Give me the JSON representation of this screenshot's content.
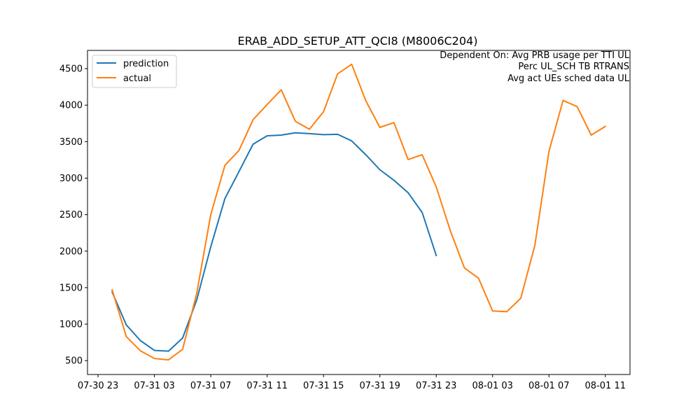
{
  "chart_data": {
    "type": "line",
    "title": "ERAB_ADD_SETUP_ATT_QCI8 (M8006C204)",
    "xlabel": "",
    "ylabel": "",
    "x_ticks": [
      "07-30 23",
      "07-31 03",
      "07-31 07",
      "07-31 11",
      "07-31 15",
      "07-31 19",
      "07-31 23",
      "08-01 03",
      "08-01 07",
      "08-01 11"
    ],
    "y_ticks": [
      500,
      1000,
      1500,
      2000,
      2500,
      3000,
      3500,
      4000,
      4500
    ],
    "xlim": [
      "2023-07-30 22:15",
      "2023-08-01 12:45"
    ],
    "ylim": [
      310,
      4750
    ],
    "grid": false,
    "legend_position": "upper-left",
    "annotation_lines": [
      "Dependent On: Avg PRB usage per TTI UL",
      "Perc UL_SCH TB RTRANS",
      "Avg act UEs sched data UL"
    ],
    "series": [
      {
        "name": "prediction",
        "color": "#1f77b4",
        "x": [
          "2023-07-31 00:00",
          "2023-07-31 01:00",
          "2023-07-31 02:00",
          "2023-07-31 03:00",
          "2023-07-31 04:00",
          "2023-07-31 05:00",
          "2023-07-31 06:00",
          "2023-07-31 07:00",
          "2023-07-31 08:00",
          "2023-07-31 09:00",
          "2023-07-31 10:00",
          "2023-07-31 11:00",
          "2023-07-31 12:00",
          "2023-07-31 13:00",
          "2023-07-31 14:00",
          "2023-07-31 15:00",
          "2023-07-31 16:00",
          "2023-07-31 17:00",
          "2023-07-31 18:00",
          "2023-07-31 19:00",
          "2023-07-31 20:00",
          "2023-07-31 21:00",
          "2023-07-31 22:00",
          "2023-07-31 23:00"
        ],
        "values": [
          1440,
          990,
          775,
          640,
          630,
          810,
          1330,
          2060,
          2720,
          3090,
          3465,
          3580,
          3590,
          3620,
          3610,
          3595,
          3600,
          3510,
          3320,
          3115,
          2970,
          2800,
          2530,
          1940
        ]
      },
      {
        "name": "actual",
        "color": "#ff7f0e",
        "x": [
          "2023-07-31 00:00",
          "2023-07-31 01:00",
          "2023-07-31 02:00",
          "2023-07-31 03:00",
          "2023-07-31 04:00",
          "2023-07-31 05:00",
          "2023-07-31 06:00",
          "2023-07-31 07:00",
          "2023-07-31 08:00",
          "2023-07-31 09:00",
          "2023-07-31 10:00",
          "2023-07-31 11:00",
          "2023-07-31 12:00",
          "2023-07-31 13:00",
          "2023-07-31 14:00",
          "2023-07-31 15:00",
          "2023-07-31 16:00",
          "2023-07-31 17:00",
          "2023-07-31 18:00",
          "2023-07-31 19:00",
          "2023-07-31 20:00",
          "2023-07-31 21:00",
          "2023-07-31 22:00",
          "2023-07-31 23:00",
          "2023-08-01 00:00",
          "2023-08-01 01:00",
          "2023-08-01 02:00",
          "2023-08-01 03:00",
          "2023-08-01 04:00",
          "2023-08-01 05:00",
          "2023-08-01 06:00",
          "2023-08-01 07:00",
          "2023-08-01 08:00",
          "2023-08-01 09:00",
          "2023-08-01 10:00",
          "2023-08-01 11:00"
        ],
        "values": [
          1470,
          830,
          635,
          530,
          510,
          655,
          1420,
          2500,
          3175,
          3380,
          3800,
          4010,
          4210,
          3780,
          3670,
          3910,
          4430,
          4560,
          4060,
          3695,
          3760,
          3255,
          3320,
          2880,
          2280,
          1770,
          1630,
          1180,
          1170,
          1355,
          2080,
          3370,
          4065,
          3980,
          3590,
          3710
        ]
      }
    ]
  }
}
